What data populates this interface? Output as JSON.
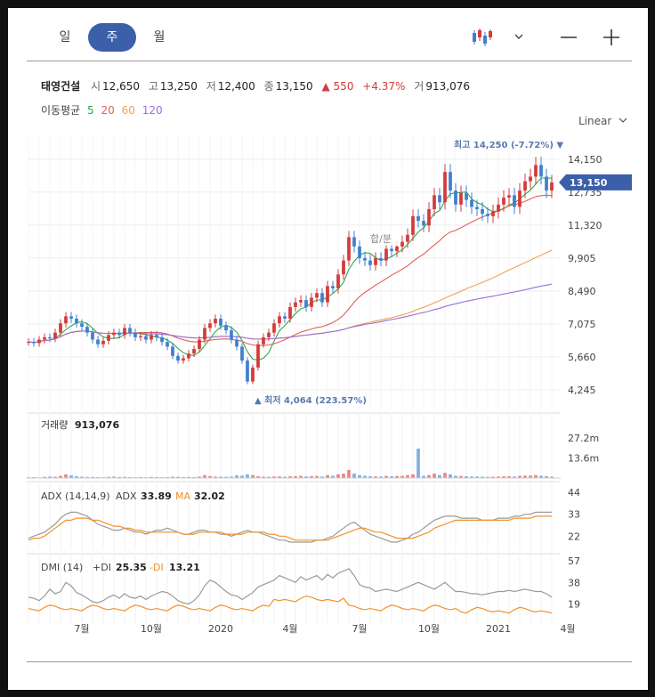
{
  "tabs": [
    {
      "label": "일",
      "active": false
    },
    {
      "label": "주",
      "active": true
    },
    {
      "label": "월",
      "active": false
    }
  ],
  "controls": {
    "chart_type_icon": "candlestick-icon",
    "dropdown_icon": "chevron-down-icon",
    "zoom_out_icon": "minus-icon",
    "zoom_in_icon": "plus-icon"
  },
  "quote": {
    "name": "태영건설",
    "open_label": "시",
    "open": "12,650",
    "high_label": "고",
    "high": "13,250",
    "low_label": "저",
    "low": "12,400",
    "close_label": "종",
    "close": "13,150",
    "change": "▲ 550",
    "change_pct": "+4.37%",
    "volume_label": "거",
    "volume": "913,076"
  },
  "moving_average": {
    "label": "이동평균",
    "periods": [
      "5",
      "20",
      "60",
      "120"
    ],
    "colors": [
      "#2fa84f",
      "#e0605a",
      "#f0a058",
      "#9b6fd6"
    ]
  },
  "scale_mode": "Linear",
  "colors": {
    "up": "#d23b3b",
    "down": "#3f7fd0",
    "price_tag": "#3b5fa8",
    "adx": "#9a9a9a",
    "ma_line": "#f0922b"
  },
  "chart_data": {
    "type": "candlestick",
    "price_axis_ticks": [
      "14,150",
      "12,735",
      "11,320",
      "9,905",
      "8,490",
      "7,075",
      "5,660",
      "4,245"
    ],
    "price_range": [
      3400,
      15250
    ],
    "current_price_tag": "13,150",
    "high_annotation": "최고 14,250 (-7.72%)",
    "low_annotation": "최저 4,064 (223.57%)",
    "event_marker": "합/분",
    "x_axis_labels": [
      "7월",
      "10월",
      "2020",
      "4월",
      "7월",
      "10월",
      "2021",
      "4월"
    ],
    "x_axis_label_weeks": [
      10,
      23,
      36,
      49,
      62,
      75,
      88,
      101
    ],
    "volume_panel": {
      "label": "거래량",
      "value": "913,076",
      "ticks": [
        "27.2m",
        "13.6m"
      ]
    },
    "adx_panel": {
      "label": "ADX (14,14,9)",
      "adx_label": "ADX",
      "adx_value": "33.89",
      "ma_label": "MA",
      "ma_value": "32.02",
      "ticks": [
        "44",
        "33",
        "22"
      ]
    },
    "dmi_panel": {
      "label": "DMI (14)",
      "plus_label": "+DI",
      "plus_value": "25.35",
      "minus_label": "-DI",
      "minus_value": "13.21",
      "ticks": [
        "57",
        "38",
        "19"
      ]
    },
    "series_close": [
      6300,
      6250,
      6400,
      6500,
      6450,
      6700,
      7100,
      7400,
      7300,
      7100,
      6950,
      6700,
      6400,
      6200,
      6350,
      6600,
      6700,
      6600,
      6900,
      6700,
      6500,
      6550,
      6400,
      6600,
      6500,
      6300,
      6100,
      5700,
      5500,
      5600,
      5800,
      6000,
      6400,
      6900,
      7100,
      7300,
      7000,
      6800,
      6400,
      6100,
      5500,
      4600,
      5200,
      6200,
      6500,
      6700,
      7100,
      7400,
      7300,
      7800,
      8000,
      8100,
      7800,
      8200,
      8400,
      8000,
      8700,
      8600,
      9200,
      9800,
      10800,
      10400,
      9900,
      9800,
      9600,
      9900,
      9800,
      10300,
      10200,
      10400,
      10600,
      10900,
      11700,
      11500,
      11300,
      12000,
      12600,
      12300,
      13600,
      12800,
      12200,
      12700,
      12400,
      12100,
      12000,
      11800,
      11700,
      11900,
      12200,
      12500,
      12600,
      12100,
      12800,
      13200,
      13400,
      13900,
      13400,
      12800,
      13150
    ],
    "series_volume_m": [
      0.5,
      0.6,
      0.4,
      0.8,
      1.0,
      0.9,
      1.5,
      2.5,
      1.8,
      1.2,
      0.9,
      0.8,
      0.7,
      0.6,
      0.5,
      0.8,
      0.9,
      0.7,
      0.8,
      0.6,
      0.5,
      0.6,
      0.5,
      0.7,
      0.6,
      0.5,
      0.6,
      0.9,
      0.8,
      0.6,
      0.7,
      0.6,
      1.0,
      2.0,
      1.3,
      1.0,
      0.9,
      0.8,
      1.0,
      1.8,
      1.6,
      2.5,
      2.0,
      1.2,
      0.9,
      0.8,
      1.0,
      1.1,
      0.9,
      1.2,
      1.3,
      1.5,
      1.0,
      1.3,
      1.4,
      1.0,
      2.0,
      1.5,
      2.5,
      3.0,
      5.5,
      3.0,
      2.0,
      1.5,
      1.2,
      1.1,
      1.0,
      1.5,
      1.2,
      1.4,
      1.5,
      2.0,
      2.5,
      20.0,
      1.5,
      2.0,
      3.0,
      2.0,
      3.5,
      2.5,
      1.5,
      1.4,
      1.2,
      1.0,
      1.0,
      0.9,
      0.8,
      0.9,
      1.0,
      1.2,
      1.2,
      1.0,
      1.5,
      1.6,
      1.7,
      2.0,
      1.5,
      1.3,
      0.9
    ],
    "series_adx": [
      21,
      22,
      23,
      24,
      26,
      28,
      31,
      33,
      34,
      34,
      33,
      32,
      30,
      28,
      27,
      26,
      25,
      25,
      26,
      25,
      24,
      24,
      23,
      24,
      25,
      25,
      26,
      25,
      24,
      23,
      23,
      24,
      25,
      25,
      24,
      24,
      23,
      23,
      22,
      23,
      24,
      25,
      24,
      24,
      23,
      22,
      21,
      20,
      20,
      19,
      19,
      19,
      19,
      19,
      20,
      20,
      21,
      22,
      24,
      26,
      28,
      29,
      27,
      25,
      23,
      22,
      21,
      20,
      19,
      19,
      20,
      21,
      23,
      24,
      26,
      28,
      30,
      31,
      32,
      32,
      32,
      31,
      31,
      31,
      31,
      30,
      30,
      30,
      31,
      31,
      31,
      32,
      32,
      33,
      33,
      34,
      34,
      34,
      34
    ],
    "series_adx_ma": [
      20,
      21,
      21,
      22,
      24,
      26,
      28,
      30,
      30,
      31,
      31,
      31,
      30,
      30,
      29,
      28,
      27,
      27,
      26,
      26,
      25,
      25,
      24,
      24,
      24,
      24,
      24,
      24,
      24,
      23,
      23,
      23,
      24,
      24,
      24,
      24,
      24,
      23,
      23,
      23,
      23,
      24,
      24,
      24,
      24,
      23,
      23,
      22,
      22,
      21,
      20,
      20,
      20,
      20,
      20,
      20,
      20,
      21,
      22,
      23,
      24,
      25,
      26,
      26,
      25,
      24,
      24,
      23,
      22,
      21,
      21,
      21,
      21,
      22,
      23,
      24,
      26,
      27,
      28,
      29,
      30,
      30,
      30,
      30,
      30,
      30,
      30,
      30,
      30,
      30,
      30,
      31,
      31,
      31,
      31,
      32,
      32,
      32,
      32
    ],
    "series_plus_di": [
      25,
      24,
      22,
      26,
      32,
      28,
      30,
      38,
      35,
      29,
      27,
      24,
      21,
      20,
      22,
      25,
      27,
      24,
      28,
      25,
      24,
      26,
      23,
      26,
      28,
      30,
      29,
      26,
      22,
      20,
      19,
      22,
      27,
      35,
      40,
      38,
      34,
      30,
      27,
      26,
      23,
      26,
      29,
      34,
      36,
      38,
      40,
      44,
      42,
      40,
      38,
      43,
      40,
      42,
      44,
      40,
      45,
      42,
      46,
      48,
      50,
      44,
      36,
      34,
      33,
      30,
      31,
      32,
      31,
      30,
      32,
      34,
      36,
      38,
      36,
      34,
      32,
      35,
      38,
      34,
      30,
      30,
      29,
      28,
      28,
      27,
      28,
      29,
      30,
      30,
      31,
      30,
      31,
      32,
      31,
      30,
      30,
      28,
      25
    ]
  }
}
